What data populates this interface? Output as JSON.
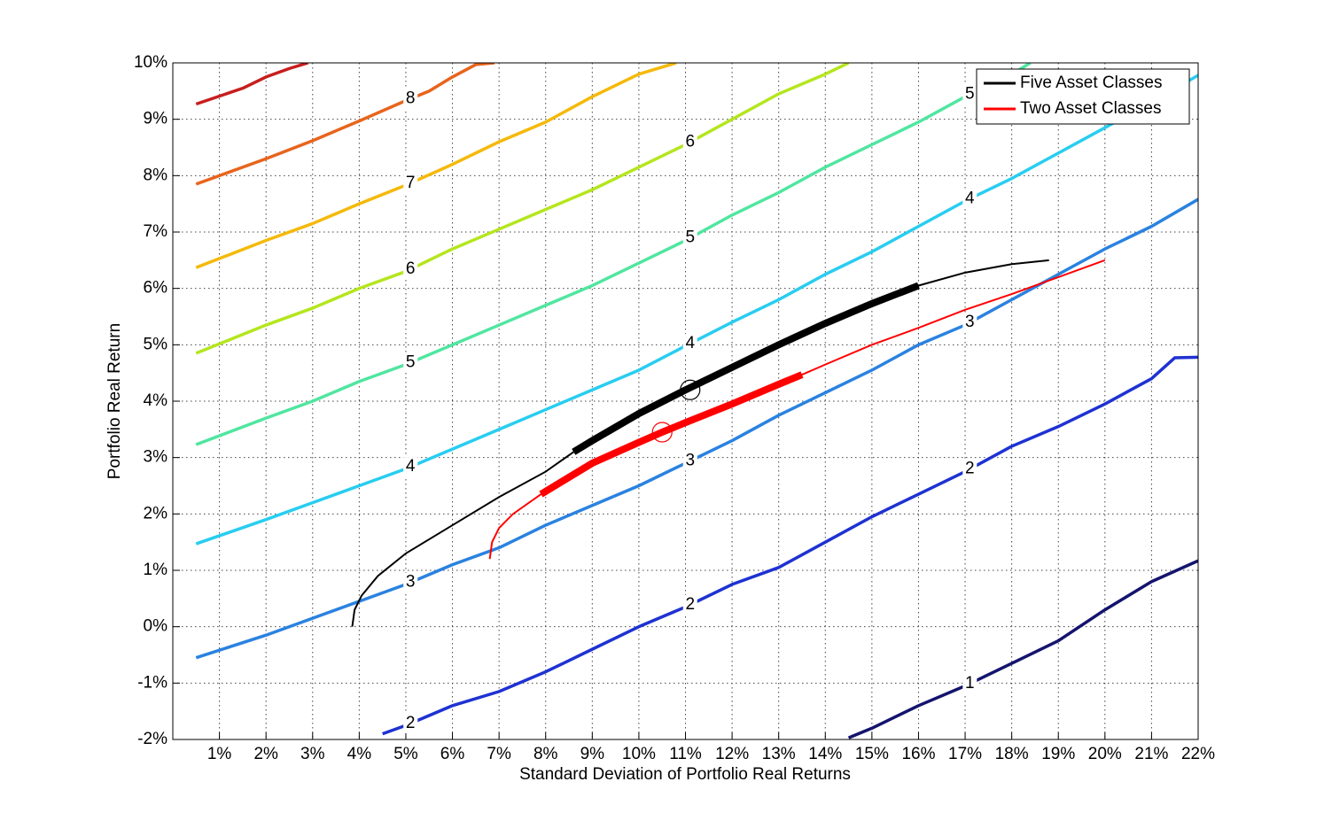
{
  "chart_data": {
    "type": "line",
    "xlabel": "Standard Deviation of Portfolio Real Returns",
    "ylabel": "Portfolio Real Return",
    "xlim": [
      0,
      22
    ],
    "ylim": [
      -2,
      10
    ],
    "xticks": [
      {
        "value": 1,
        "label": "1%"
      },
      {
        "value": 2,
        "label": "2%"
      },
      {
        "value": 3,
        "label": "3%"
      },
      {
        "value": 4,
        "label": "4%"
      },
      {
        "value": 5,
        "label": "5%"
      },
      {
        "value": 6,
        "label": "6%"
      },
      {
        "value": 7,
        "label": "7%"
      },
      {
        "value": 8,
        "label": "8%"
      },
      {
        "value": 9,
        "label": "9%"
      },
      {
        "value": 10,
        "label": "10%"
      },
      {
        "value": 11,
        "label": "11%"
      },
      {
        "value": 12,
        "label": "12%"
      },
      {
        "value": 13,
        "label": "13%"
      },
      {
        "value": 14,
        "label": "14%"
      },
      {
        "value": 15,
        "label": "15%"
      },
      {
        "value": 16,
        "label": "16%"
      },
      {
        "value": 17,
        "label": "17%"
      },
      {
        "value": 18,
        "label": "18%"
      },
      {
        "value": 19,
        "label": "19%"
      },
      {
        "value": 20,
        "label": "20%"
      },
      {
        "value": 21,
        "label": "21%"
      },
      {
        "value": 22,
        "label": "22%"
      }
    ],
    "yticks": [
      {
        "value": -2,
        "label": "-2%"
      },
      {
        "value": -1,
        "label": "-1%"
      },
      {
        "value": 0,
        "label": "0%"
      },
      {
        "value": 1,
        "label": "1%"
      },
      {
        "value": 2,
        "label": "2%"
      },
      {
        "value": 3,
        "label": "3%"
      },
      {
        "value": 4,
        "label": "4%"
      },
      {
        "value": 5,
        "label": "5%"
      },
      {
        "value": 6,
        "label": "6%"
      },
      {
        "value": 7,
        "label": "7%"
      },
      {
        "value": 8,
        "label": "8%"
      },
      {
        "value": 9,
        "label": "9%"
      },
      {
        "value": 10,
        "label": "10%"
      }
    ],
    "grid": true,
    "legend": "upper right",
    "contours": [
      {
        "color": "#c81e1e",
        "x": [
          0.5,
          1.5,
          2,
          2.5,
          2.9
        ],
        "y": [
          9.27,
          9.55,
          9.75,
          9.9,
          10
        ]
      },
      {
        "color": "#e8641c",
        "level": 8,
        "label_x": [
          5.1
        ],
        "x": [
          0.5,
          1,
          2,
          3,
          4,
          5,
          5.5,
          6,
          6.5,
          6.9
        ],
        "y": [
          7.85,
          8.0,
          8.3,
          8.62,
          8.97,
          9.33,
          9.5,
          9.75,
          9.97,
          10
        ]
      },
      {
        "color": "#f5b90a",
        "level": 7,
        "label_x": [
          5.1
        ],
        "x": [
          0.5,
          2,
          3,
          4,
          5,
          6,
          7,
          8,
          9,
          10,
          10.8
        ],
        "y": [
          6.37,
          6.85,
          7.15,
          7.5,
          7.83,
          8.2,
          8.6,
          8.95,
          9.4,
          9.8,
          10
        ]
      },
      {
        "color": "#b4e61e",
        "level": 6,
        "label_x": [
          5.1,
          11.1
        ],
        "x": [
          0.5,
          2,
          3,
          4,
          5,
          6,
          7,
          8,
          9,
          10,
          11,
          12,
          13,
          14,
          14.5
        ],
        "y": [
          4.85,
          5.35,
          5.65,
          6.0,
          6.3,
          6.7,
          7.05,
          7.4,
          7.75,
          8.15,
          8.55,
          9.0,
          9.45,
          9.8,
          10
        ]
      },
      {
        "color": "#50e6a0",
        "level": 5,
        "label_x": [
          5.1,
          11.1,
          17.1
        ],
        "x": [
          0.5,
          2,
          3,
          4,
          5,
          6,
          7,
          8,
          9,
          10,
          11,
          12,
          13,
          14,
          15,
          16,
          17,
          18,
          18.4
        ],
        "y": [
          3.23,
          3.7,
          4.0,
          4.35,
          4.65,
          5.0,
          5.35,
          5.7,
          6.05,
          6.45,
          6.85,
          7.3,
          7.7,
          8.15,
          8.55,
          8.95,
          9.4,
          9.8,
          10
        ]
      },
      {
        "color": "#28cdf0",
        "level": 4,
        "label_x": [
          5.1,
          11.1,
          17.1
        ],
        "x": [
          0.5,
          2,
          3,
          4,
          5,
          6,
          7,
          8,
          9,
          10,
          11,
          12,
          13,
          14,
          15,
          16,
          17,
          18,
          19,
          20,
          21,
          22
        ],
        "y": [
          1.47,
          1.9,
          2.2,
          2.5,
          2.8,
          3.15,
          3.5,
          3.85,
          4.2,
          4.55,
          4.98,
          5.4,
          5.8,
          6.25,
          6.65,
          7.1,
          7.55,
          7.95,
          8.4,
          8.85,
          9.3,
          9.78
        ]
      },
      {
        "color": "#2a82e0",
        "level": 3,
        "label_x": [
          5.1,
          11.1,
          17.1
        ],
        "x": [
          0.5,
          2,
          3,
          4,
          5,
          6,
          7,
          8,
          9,
          10,
          11,
          12,
          13,
          14,
          15,
          16,
          17,
          18,
          19,
          20,
          21,
          22
        ],
        "y": [
          -0.55,
          -0.15,
          0.15,
          0.45,
          0.75,
          1.1,
          1.4,
          1.8,
          2.15,
          2.5,
          2.9,
          3.3,
          3.75,
          4.15,
          4.55,
          5.0,
          5.35,
          5.8,
          6.25,
          6.7,
          7.1,
          7.58
        ]
      },
      {
        "color": "#1e32d2",
        "level": 2,
        "label_x": [
          5.1,
          11.1,
          17.1
        ],
        "x": [
          4.5,
          5,
          6,
          7,
          8,
          9,
          10,
          11,
          12,
          13,
          14,
          15,
          16,
          17,
          18,
          19,
          20,
          21,
          21.5,
          22
        ],
        "y": [
          -1.9,
          -1.75,
          -1.4,
          -1.15,
          -0.8,
          -0.4,
          0.0,
          0.35,
          0.75,
          1.05,
          1.5,
          1.95,
          2.35,
          2.75,
          3.2,
          3.55,
          3.95,
          4.4,
          4.77,
          4.78
        ]
      },
      {
        "color": "#14146e",
        "level": 1,
        "label_x": [
          17.1
        ],
        "x": [
          14.5,
          15,
          16,
          17,
          18,
          19,
          20,
          21,
          22
        ],
        "y": [
          -1.97,
          -1.8,
          -1.4,
          -1.05,
          -0.65,
          -0.25,
          0.3,
          0.8,
          1.17
        ]
      }
    ],
    "series": [
      {
        "name": "Five Asset Classes",
        "color": "#000000",
        "emphasis_x": [
          8.6,
          16
        ],
        "marker": {
          "x": 11.1,
          "y": 4.2
        },
        "x": [
          3.85,
          3.9,
          4.05,
          4.4,
          5,
          6,
          7,
          8,
          8.6,
          9,
          10,
          11,
          12,
          13,
          14,
          15,
          16,
          17,
          18,
          18.8
        ],
        "y": [
          0,
          0.3,
          0.55,
          0.9,
          1.3,
          1.8,
          2.3,
          2.75,
          3.1,
          3.3,
          3.78,
          4.2,
          4.6,
          5.0,
          5.38,
          5.73,
          6.05,
          6.28,
          6.43,
          6.5
        ]
      },
      {
        "name": "Two Asset Classes",
        "color": "#ff0000",
        "emphasis_x": [
          7.9,
          13.5
        ],
        "marker": {
          "x": 10.5,
          "y": 3.45
        },
        "x": [
          6.8,
          6.85,
          7,
          7.3,
          7.9,
          9,
          10,
          10.5,
          11,
          12,
          13,
          13.5,
          14,
          15,
          16,
          17,
          18,
          19,
          20
        ],
        "y": [
          1.2,
          1.5,
          1.75,
          2.0,
          2.35,
          2.9,
          3.27,
          3.45,
          3.62,
          3.95,
          4.3,
          4.47,
          4.65,
          5.0,
          5.3,
          5.62,
          5.9,
          6.2,
          6.5
        ]
      }
    ]
  }
}
